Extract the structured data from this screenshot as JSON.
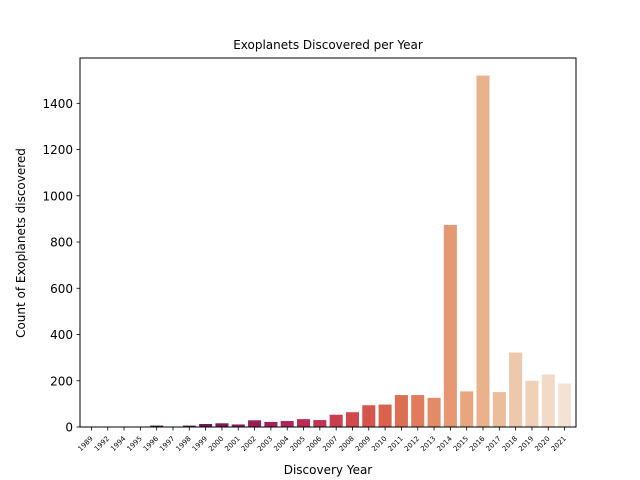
{
  "chart_data": {
    "type": "bar",
    "title": "Exoplanets Discovered per Year",
    "xlabel": "Discovery Year",
    "ylabel": "Count of Exoplanets discovered",
    "categories": [
      "1989",
      "1992",
      "1994",
      "1995",
      "1996",
      "1997",
      "1998",
      "1999",
      "2000",
      "2001",
      "2002",
      "2003",
      "2004",
      "2005",
      "2006",
      "2007",
      "2008",
      "2009",
      "2010",
      "2011",
      "2012",
      "2013",
      "2014",
      "2015",
      "2016",
      "2017",
      "2018",
      "2019",
      "2020",
      "2021"
    ],
    "values": [
      1,
      2,
      1,
      1,
      6,
      1,
      6,
      13,
      16,
      11,
      29,
      22,
      26,
      34,
      30,
      53,
      64,
      94,
      97,
      138,
      138,
      126,
      874,
      154,
      1520,
      151,
      322,
      200,
      227,
      188
    ],
    "ylim": [
      0,
      1596
    ],
    "yticks": [
      0,
      200,
      400,
      600,
      800,
      1000,
      1200,
      1400
    ],
    "grid": false,
    "colors": [
      "#1b0c29",
      "#240f31",
      "#2e1238",
      "#39143f",
      "#451646",
      "#51184b",
      "#5e1a50",
      "#6b1b53",
      "#791d56",
      "#871e58",
      "#952058",
      "#a22358",
      "#ae2657",
      "#ba2b55",
      "#c33353",
      "#cb3c50",
      "#d1484d",
      "#d6544d",
      "#da614e",
      "#dd6d53",
      "#e07b5b",
      "#e38a66",
      "#e59871",
      "#e8a67e",
      "#eab28c",
      "#ecbd9b",
      "#eec8aa",
      "#f0d1b8",
      "#f2dac6",
      "#f4e2d3"
    ]
  }
}
